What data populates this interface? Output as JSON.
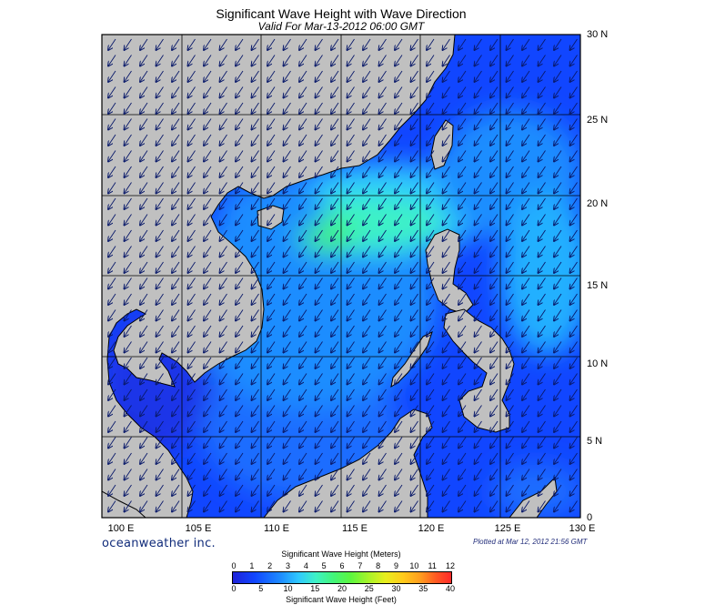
{
  "header": {
    "title": "Significant Wave Height with Wave Direction",
    "subtitle": "Valid For Mar-13-2012 06:00 GMT"
  },
  "map": {
    "lon_range": [
      100,
      130
    ],
    "lat_range": [
      0,
      30
    ],
    "lon_labels": [
      "100 E",
      "105 E",
      "110 E",
      "115 E",
      "120 E",
      "125 E",
      "130 E"
    ],
    "lat_labels": [
      "30 N",
      "25 N",
      "20 N",
      "15 N",
      "10 N",
      "5 N",
      "0"
    ],
    "land_color": "#c0c0c0",
    "ocean_base_color": "#1146ff",
    "highest_wave_area": "Luzon Strait and central South China Sea",
    "arrow_direction": "toward south-west"
  },
  "footer": {
    "brand": "oceanweather inc.",
    "plotted": "Plotted at Mar 12, 2012 21:56 GMT"
  },
  "colorbar": {
    "title_meters": "Significant Wave Height (Meters)",
    "title_feet": "Significant Wave Height (Feet)",
    "meters_ticks": [
      "0",
      "1",
      "2",
      "3",
      "4",
      "5",
      "6",
      "7",
      "8",
      "9",
      "10",
      "11",
      "12"
    ],
    "feet_ticks": [
      "0",
      "5",
      "10",
      "15",
      "20",
      "25",
      "30",
      "35",
      "40"
    ],
    "colors": [
      "#1f22d8",
      "#1146ff",
      "#1e8dff",
      "#2fc8ff",
      "#3ef2c6",
      "#43f57a",
      "#5cf63f",
      "#a6f42a",
      "#e8ee1e",
      "#ffca1b",
      "#ff9c1f",
      "#ff5a23",
      "#ff2a2a"
    ]
  }
}
